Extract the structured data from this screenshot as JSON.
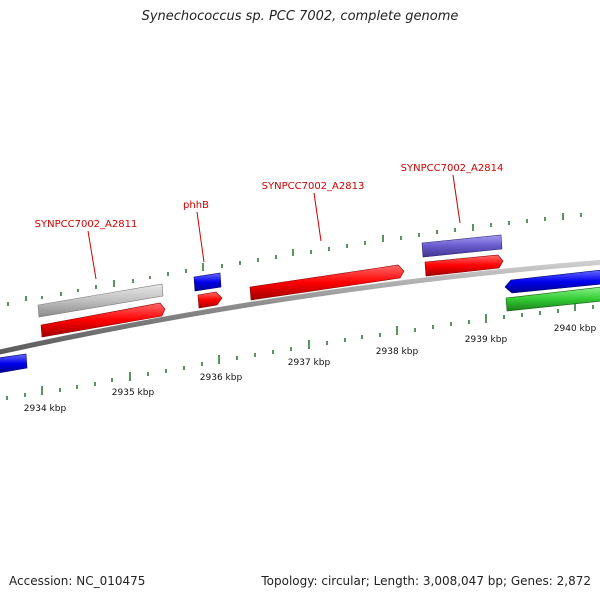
{
  "title": "Synechococcus sp. PCC 7002, complete genome",
  "footer": {
    "accession": "Accession: NC_010475",
    "stats": "Topology: circular; Length: 3,008,047 bp; Genes: 2,872"
  },
  "colors": {
    "gene_red": "#ff0000",
    "gene_blue": "#0000ee",
    "gene_gray": "#c0c0c0",
    "gene_purple": "#6a5acd",
    "gene_green": "#33cc33",
    "backbone": "#888888",
    "tick": "#2e7d32",
    "label": "#cc0000"
  },
  "axis": {
    "ticks": [
      {
        "kbp": 2934,
        "label": "2934 kbp"
      },
      {
        "kbp": 2935,
        "label": "2935 kbp"
      },
      {
        "kbp": 2936,
        "label": "2936 kbp"
      },
      {
        "kbp": 2937,
        "label": "2937 kbp"
      },
      {
        "kbp": 2938,
        "label": "2938 kbp"
      },
      {
        "kbp": 2939,
        "label": "2939 kbp"
      },
      {
        "kbp": 2940,
        "label": "2940 kbp"
      }
    ]
  },
  "gene_labels": [
    {
      "name": "SYNPCC7002_A2811"
    },
    {
      "name": "phhB"
    },
    {
      "name": "SYNPCC7002_A2813"
    },
    {
      "name": "SYNPCC7002_A2814"
    }
  ]
}
